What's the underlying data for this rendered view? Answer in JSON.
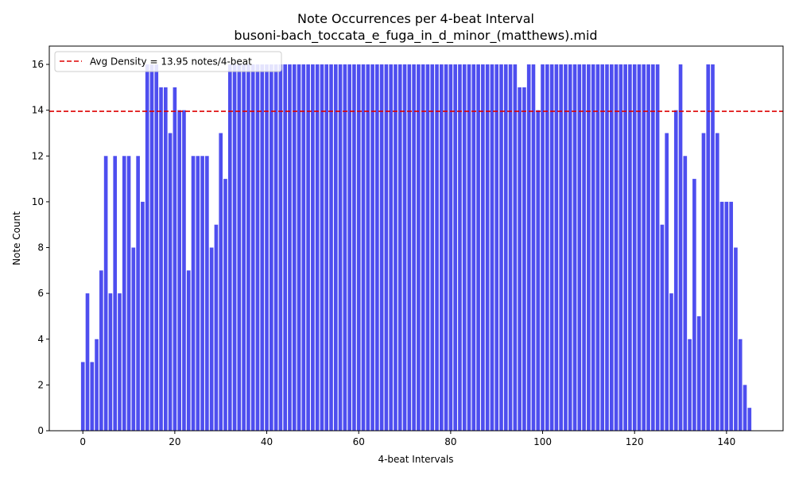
{
  "chart_data": {
    "type": "bar",
    "title": "Note Occurrences per 4-beat Interval",
    "subtitle": "busoni-bach_toccata_e_fuga_in_d_minor_(matthews).mid",
    "xlabel": "4-beat Intervals",
    "ylabel": "Note Count",
    "xlim": [
      -7.3,
      152.3
    ],
    "ylim": [
      0,
      16.8
    ],
    "xticks": [
      0,
      20,
      40,
      60,
      80,
      100,
      120,
      140
    ],
    "yticks": [
      0,
      2,
      4,
      6,
      8,
      10,
      12,
      14,
      16
    ],
    "bar_color": "#4444ee",
    "avg_line": {
      "value": 13.95,
      "color": "#dd0000",
      "label": "Avg Density = 13.95 notes/4-beat"
    },
    "legend_position": "top-left",
    "grid": false,
    "x": [
      0,
      1,
      2,
      3,
      4,
      5,
      6,
      7,
      8,
      9,
      10,
      11,
      12,
      13,
      14,
      15,
      16,
      17,
      18,
      19,
      20,
      21,
      22,
      23,
      24,
      25,
      26,
      27,
      28,
      29,
      30,
      31,
      32,
      33,
      34,
      35,
      36,
      37,
      38,
      39,
      40,
      41,
      42,
      43,
      44,
      45,
      46,
      47,
      48,
      49,
      50,
      51,
      52,
      53,
      54,
      55,
      56,
      57,
      58,
      59,
      60,
      61,
      62,
      63,
      64,
      65,
      66,
      67,
      68,
      69,
      70,
      71,
      72,
      73,
      74,
      75,
      76,
      77,
      78,
      79,
      80,
      81,
      82,
      83,
      84,
      85,
      86,
      87,
      88,
      89,
      90,
      91,
      92,
      93,
      94,
      95,
      96,
      97,
      98,
      99,
      100,
      101,
      102,
      103,
      104,
      105,
      106,
      107,
      108,
      109,
      110,
      111,
      112,
      113,
      114,
      115,
      116,
      117,
      118,
      119,
      120,
      121,
      122,
      123,
      124,
      125,
      126,
      127,
      128,
      129,
      130,
      131,
      132,
      133,
      134,
      135,
      136,
      137,
      138,
      139,
      140,
      141,
      142,
      143,
      144,
      145
    ],
    "values": [
      3,
      6,
      3,
      4,
      7,
      12,
      6,
      12,
      6,
      12,
      12,
      8,
      12,
      10,
      16,
      16,
      16,
      15,
      15,
      13,
      15,
      14,
      14,
      7,
      12,
      12,
      12,
      12,
      8,
      9,
      13,
      11,
      16,
      16,
      16,
      16,
      16,
      16,
      16,
      16,
      16,
      16,
      16,
      16,
      16,
      16,
      16,
      16,
      16,
      16,
      16,
      16,
      16,
      16,
      16,
      16,
      16,
      16,
      16,
      16,
      16,
      16,
      16,
      16,
      16,
      16,
      16,
      16,
      16,
      16,
      16,
      16,
      16,
      16,
      16,
      16,
      16,
      16,
      16,
      16,
      16,
      16,
      16,
      16,
      16,
      16,
      16,
      16,
      16,
      16,
      16,
      16,
      16,
      16,
      16,
      15,
      15,
      16,
      16,
      14,
      16,
      16,
      16,
      16,
      16,
      16,
      16,
      16,
      16,
      16,
      16,
      16,
      16,
      16,
      16,
      16,
      16,
      16,
      16,
      16,
      16,
      16,
      16,
      16,
      16,
      16,
      9,
      13,
      6,
      14,
      16,
      12,
      4,
      11,
      5,
      13,
      16,
      16,
      13,
      10,
      10,
      10,
      8,
      4,
      2,
      1
    ]
  }
}
